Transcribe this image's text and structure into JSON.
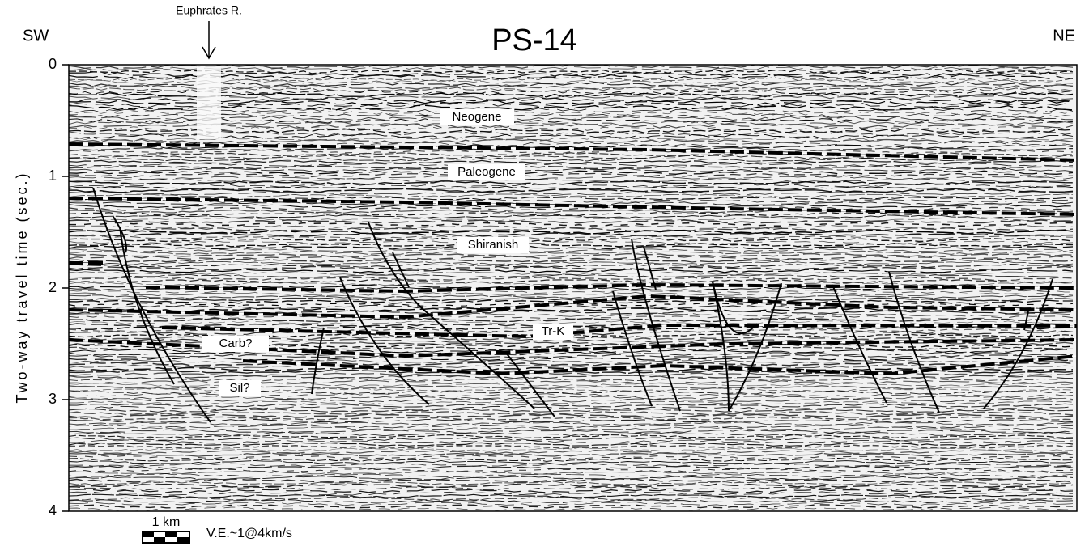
{
  "title": "PS-14",
  "left_direction": "SW",
  "right_direction": "NE",
  "river_label": "Euphrates R.",
  "axis": {
    "label": "Two-way travel time (sec.)",
    "ylim": [
      0,
      4
    ],
    "yticks": [
      0,
      1,
      2,
      3,
      4
    ]
  },
  "horizon_labels": [
    "Neogene",
    "Paleogene",
    "Shiranish",
    "Tr-K",
    "Carb?",
    "Sil?"
  ],
  "scale_label": "1 km",
  "ve_label": "V.E.~1@4km/s"
}
